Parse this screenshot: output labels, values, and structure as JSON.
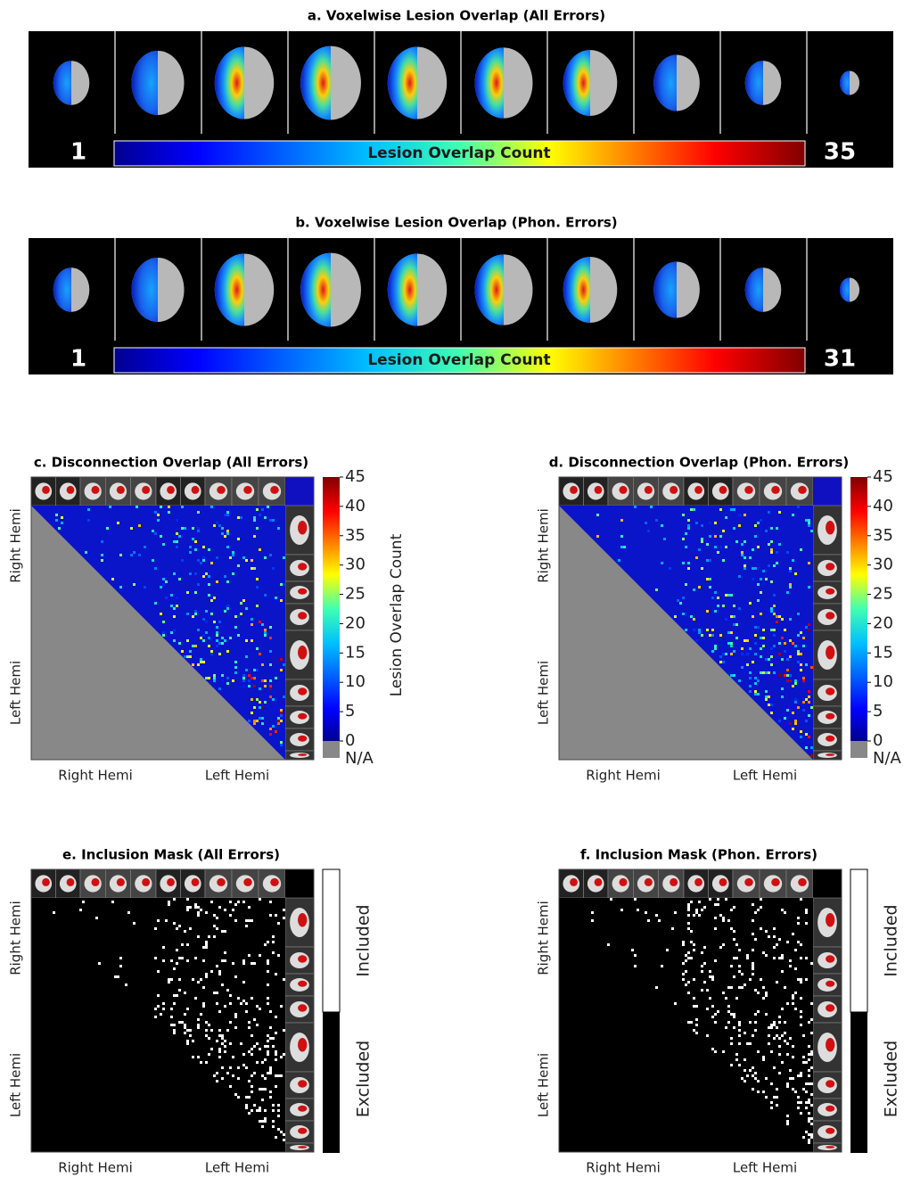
{
  "panel_a": {
    "title": "a. Voxelwise Lesion Overlap (All Errors)",
    "min_label": "1",
    "max_label": "35",
    "colorbar_label": "Lesion Overlap Count"
  },
  "panel_b": {
    "title": "b. Voxelwise Lesion Overlap (Phon. Errors)",
    "min_label": "1",
    "max_label": "31",
    "colorbar_label": "Lesion Overlap Count"
  },
  "panel_c": {
    "title": "c. Disconnection Overlap (All Errors)",
    "colorbar_ticks": [
      0,
      5,
      10,
      15,
      20,
      25,
      30,
      35,
      40,
      45
    ],
    "na_label": "N/A",
    "colorbar_label": "Lesion Overlap Count",
    "y_labels": [
      "Right Hemi",
      "Left Hemi"
    ],
    "x_labels": [
      "Right Hemi",
      "Left Hemi"
    ]
  },
  "panel_d": {
    "title": "d. Disconnection Overlap (Phon. Errors)",
    "colorbar_ticks": [
      0,
      5,
      10,
      15,
      20,
      25,
      30,
      35,
      40,
      45
    ],
    "na_label": "N/A",
    "y_labels": [
      "Right Hemi",
      "Left Hemi"
    ],
    "x_labels": [
      "Right Hemi",
      "Left Hemi"
    ]
  },
  "panel_e": {
    "title": "e. Inclusion Mask (All Errors)",
    "included_label": "Included",
    "excluded_label": "Excluded",
    "y_labels": [
      "Right Hemi",
      "Left Hemi"
    ],
    "x_labels": [
      "Right Hemi",
      "Left Hemi"
    ]
  },
  "panel_f": {
    "title": "f. Inclusion Mask (Phon. Errors)",
    "included_label": "Included",
    "excluded_label": "Excluded",
    "y_labels": [
      "Right Hemi",
      "Left Hemi"
    ],
    "x_labels": [
      "Right Hemi",
      "Left Hemi"
    ]
  }
}
